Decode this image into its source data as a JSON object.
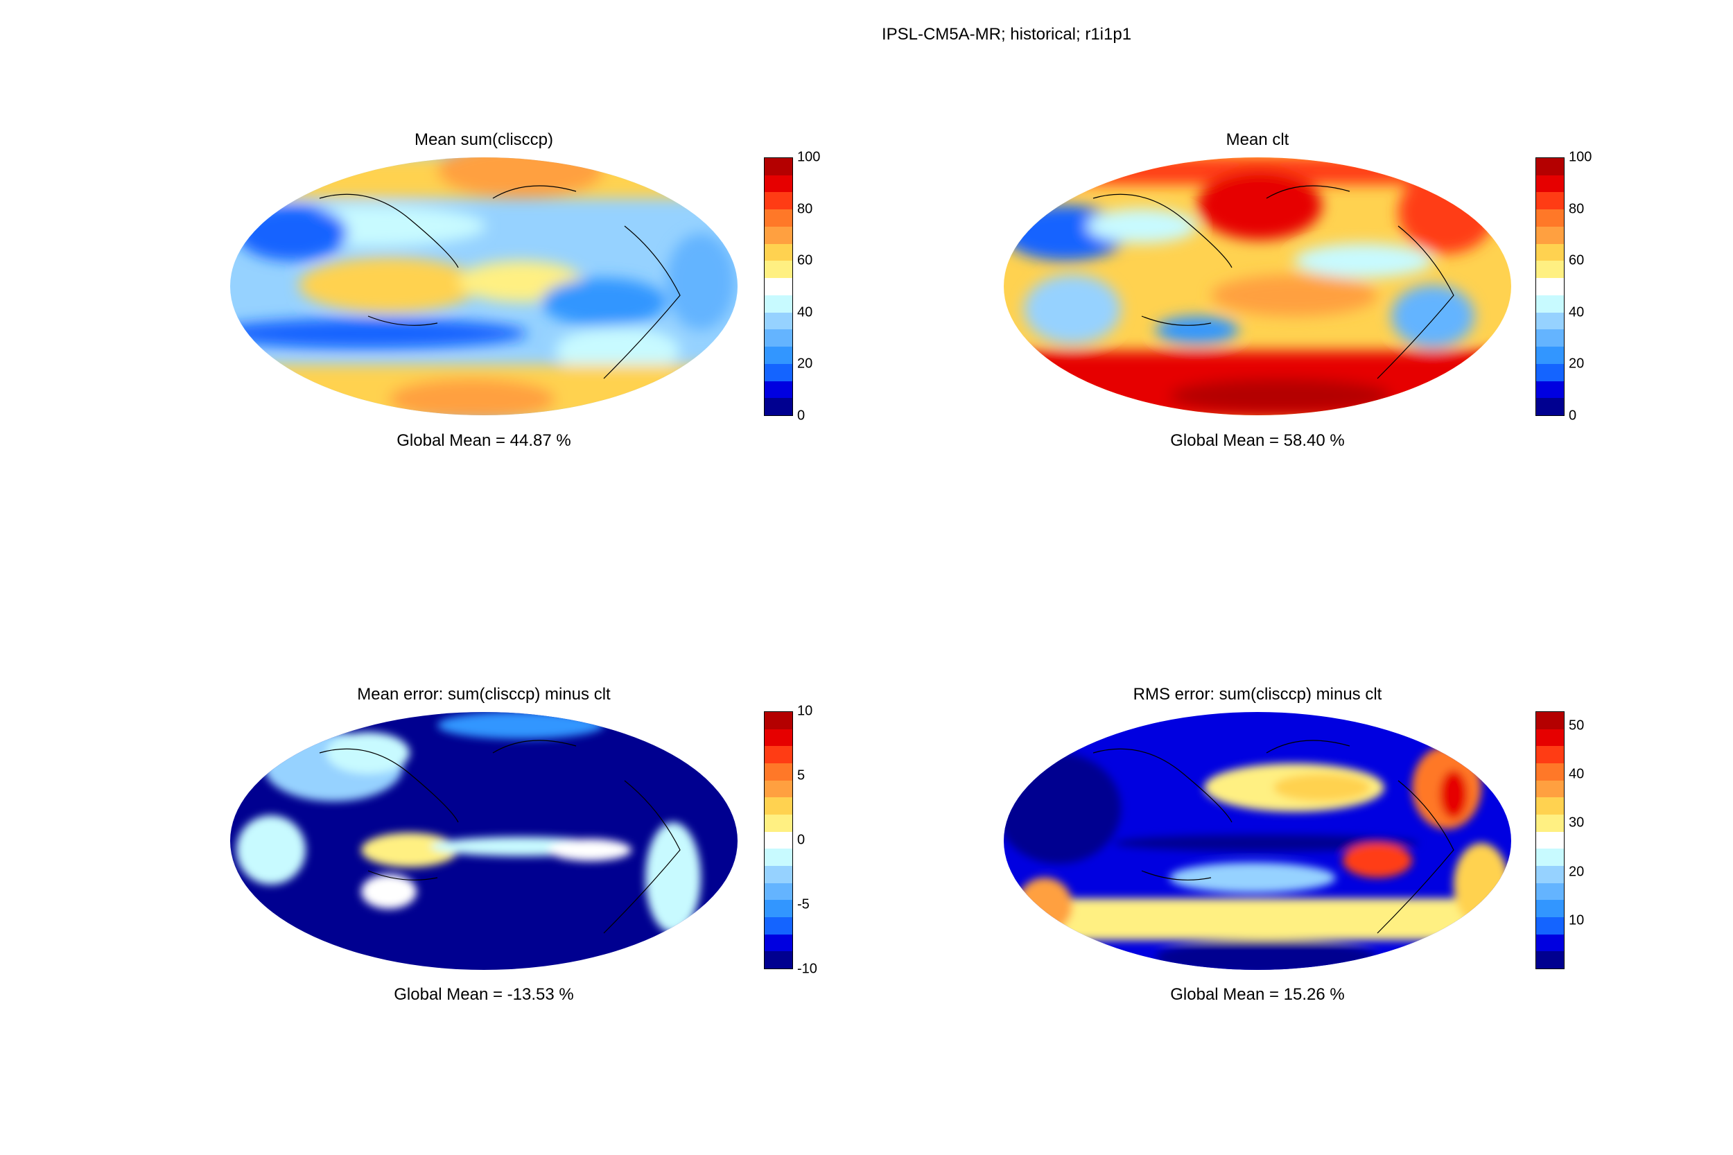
{
  "suptitle": "IPSL-CM5A-MR; historical; r1i1p1",
  "colormap": [
    "#000090",
    "#0000e0",
    "#1464ff",
    "#3296ff",
    "#64b4ff",
    "#96d2ff",
    "#c8faff",
    "#ffffff",
    "#fff082",
    "#ffd250",
    "#ffa040",
    "#ff7828",
    "#ff3c14",
    "#e60000",
    "#b40000"
  ],
  "chart_data": [
    {
      "type": "heatmap",
      "title": "Mean sum(clisccp)",
      "projection": "mollweide",
      "vmin": 0,
      "vmax": 100,
      "colorbar_ticks": [
        "0",
        "20",
        "40",
        "60",
        "80",
        "100"
      ],
      "global_mean_label": "Global Mean = 44.87 %",
      "global_mean": 44.87
    },
    {
      "type": "heatmap",
      "title": "Mean clt",
      "projection": "mollweide",
      "vmin": 0,
      "vmax": 100,
      "colorbar_ticks": [
        "0",
        "20",
        "40",
        "60",
        "80",
        "100"
      ],
      "global_mean_label": "Global Mean = 58.40 %",
      "global_mean": 58.4
    },
    {
      "type": "heatmap",
      "title": "Mean error: sum(clisccp) minus clt",
      "projection": "mollweide",
      "vmin": -10,
      "vmax": 10,
      "colorbar_ticks": [
        "-10",
        "-5",
        "0",
        "5",
        "10"
      ],
      "global_mean_label": "Global Mean = -13.53 %",
      "global_mean": -13.53
    },
    {
      "type": "heatmap",
      "title": "RMS error: sum(clisccp) minus clt",
      "projection": "mollweide",
      "vmin": 0,
      "vmax": 53,
      "colorbar_ticks": [
        "10",
        "20",
        "30",
        "40",
        "50"
      ],
      "colorbar_tick_values": [
        10,
        20,
        30,
        40,
        50
      ],
      "global_mean_label": "Global Mean = 15.26 %",
      "global_mean": 15.26
    }
  ]
}
